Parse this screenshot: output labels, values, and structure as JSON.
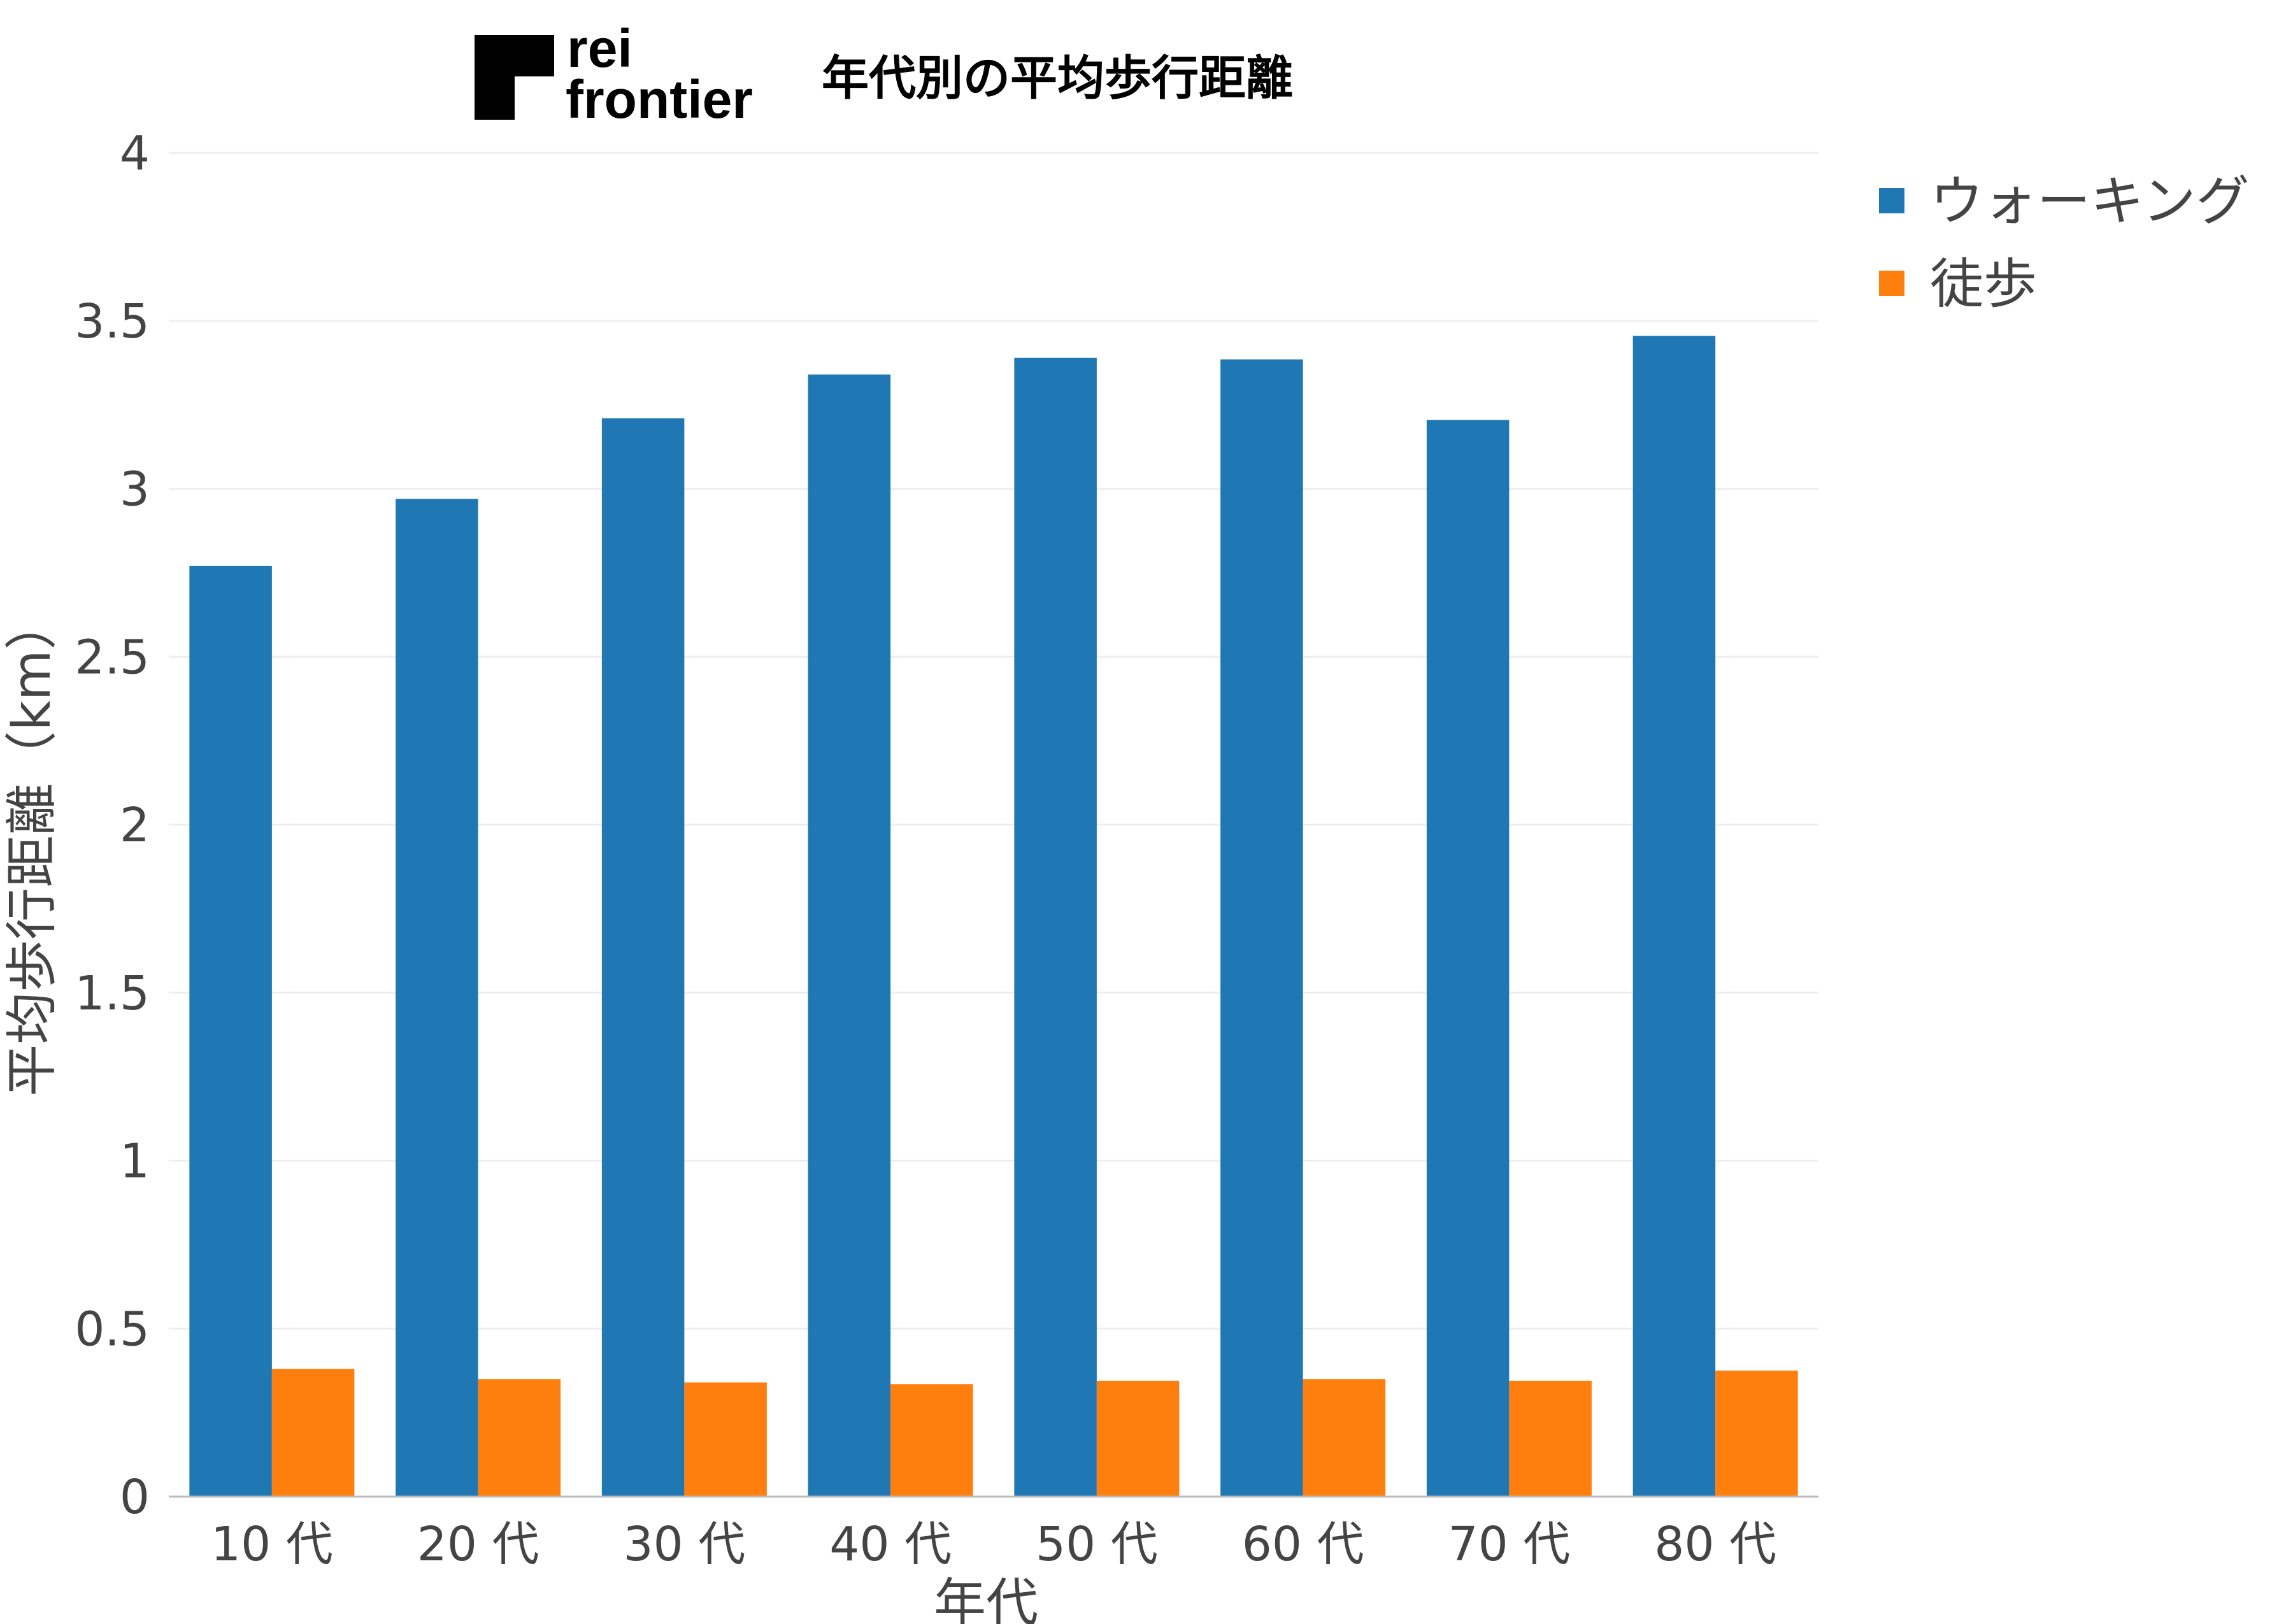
{
  "brand": {
    "line1": "rei",
    "line2": "frontier"
  },
  "chart_data": {
    "type": "bar",
    "title": "年代別の平均歩行距離",
    "xlabel": "年代",
    "ylabel": "平均歩行距離（km）",
    "categories": [
      "10 代",
      "20 代",
      "30 代",
      "40 代",
      "50 代",
      "60 代",
      "70 代",
      "80 代"
    ],
    "ylim": [
      0,
      4
    ],
    "yticks": [
      0,
      0.5,
      1,
      1.5,
      2,
      2.5,
      3,
      3.5,
      4
    ],
    "ytick_labels": [
      "0",
      "0.5",
      "1",
      "1.5",
      "2",
      "2.5",
      "3",
      "3.5",
      "4"
    ],
    "grid": true,
    "legend": "top-right",
    "series": [
      {
        "name": "ウォーキング",
        "color": "#1f77b4",
        "values": [
          2.77,
          2.97,
          3.21,
          3.34,
          3.39,
          3.385,
          3.205,
          3.455
        ]
      },
      {
        "name": "徒歩",
        "color": "#ff7f0e",
        "values": [
          0.38,
          0.35,
          0.34,
          0.335,
          0.345,
          0.35,
          0.345,
          0.375
        ]
      }
    ]
  }
}
